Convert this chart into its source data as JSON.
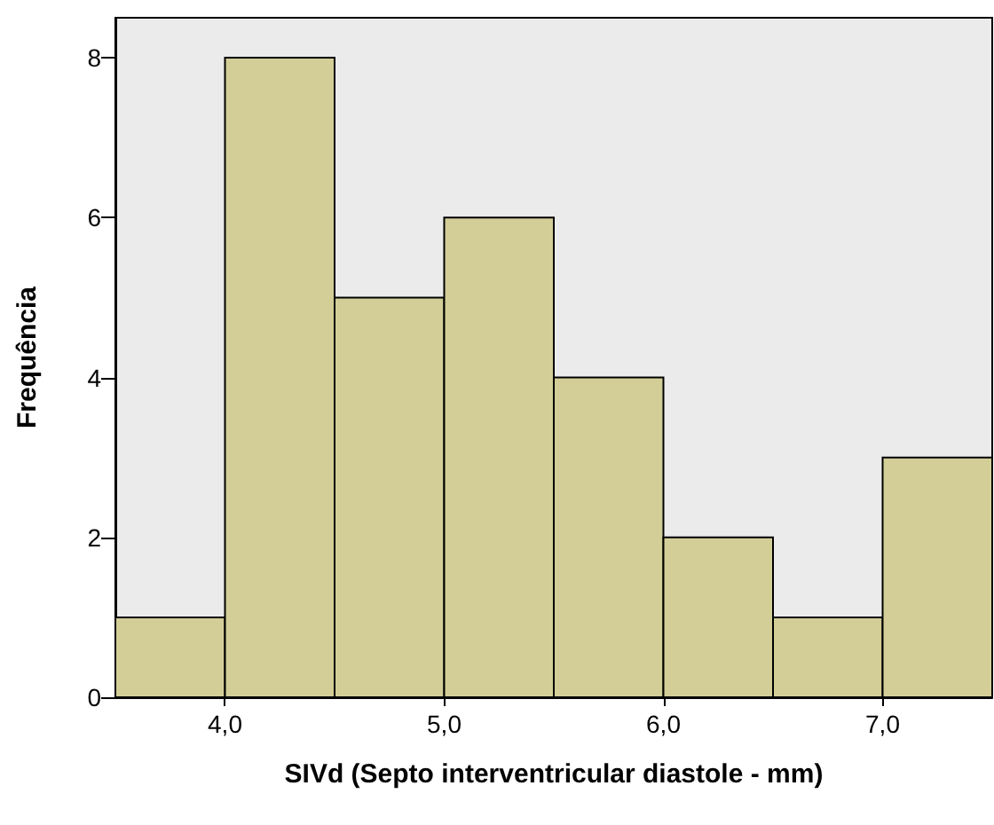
{
  "chart_data": {
    "type": "histogram",
    "xlabel": "SIVd (Septo interventricular diastole - mm)",
    "ylabel": "Frequência",
    "bins": [
      3.5,
      4,
      4.5,
      5,
      5.5,
      6,
      6.5,
      7,
      7.5
    ],
    "values": [
      1,
      8,
      5,
      6,
      4,
      2,
      1,
      3
    ],
    "color": "#d3ce97",
    "xlim": [
      3.5,
      7.5
    ],
    "xticks": [
      {
        "value": 4,
        "label": "4,0"
      },
      {
        "value": 5,
        "label": "5,0"
      },
      {
        "value": 6,
        "label": "6,0"
      },
      {
        "value": 7,
        "label": "7,0"
      }
    ],
    "ylim": [
      0,
      8.5
    ],
    "yticks": [
      0,
      2,
      4,
      6,
      8
    ],
    "grid": false
  }
}
